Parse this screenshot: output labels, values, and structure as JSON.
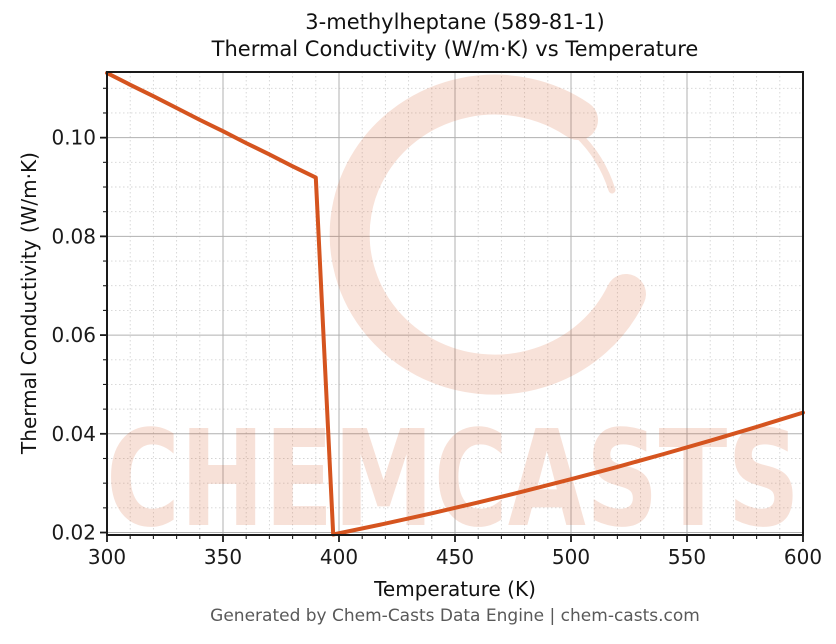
{
  "chart_data": {
    "type": "line",
    "title": "3-methylheptane (589-81-1)",
    "subtitle": "Thermal Conductivity (W/m·K) vs Temperature",
    "xlabel": "Temperature (K)",
    "ylabel": "Thermal Conductivity (W/m·K)",
    "xlim": [
      300,
      600
    ],
    "ylim": [
      0.0195,
      0.1133
    ],
    "xticks": [
      300,
      350,
      400,
      450,
      500,
      550,
      600
    ],
    "yticks": [
      0.02,
      0.04,
      0.06,
      0.08,
      0.1
    ],
    "x_minor_step": 10,
    "y_minor_step": 0.005,
    "grid": true,
    "legend": "none",
    "series": [
      {
        "name": "thermal-conductivity",
        "color": "#d5541f",
        "points": [
          [
            300,
            0.1131
          ],
          [
            310,
            0.1107
          ],
          [
            320,
            0.1084
          ],
          [
            330,
            0.106
          ],
          [
            340,
            0.1036
          ],
          [
            350,
            0.1013
          ],
          [
            360,
            0.0989
          ],
          [
            370,
            0.0966
          ],
          [
            380,
            0.0942
          ],
          [
            390,
            0.0919
          ],
          [
            397.5,
            0.0196
          ],
          [
            420,
            0.0218
          ],
          [
            440,
            0.0239
          ],
          [
            460,
            0.0261
          ],
          [
            480,
            0.0284
          ],
          [
            500,
            0.0308
          ],
          [
            520,
            0.0333
          ],
          [
            540,
            0.0359
          ],
          [
            560,
            0.0386
          ],
          [
            580,
            0.0414
          ],
          [
            600,
            0.0443
          ]
        ]
      }
    ]
  },
  "watermark": {
    "text": "CHEMCASTS",
    "icon": "c-swirl-logo",
    "color": "#d5541f",
    "opacity": 0.17
  },
  "footer": {
    "text": "Generated by Chem-Casts Data Engine | chem-casts.com"
  },
  "colors": {
    "line": "#d5541f",
    "spine": "#1a1a1a",
    "grid_major": "#b0b0b0",
    "grid_minor": "#d4d4d4",
    "tick": "#1a1a1a",
    "tick_label": "#1a1a1a",
    "footer_text": "#595959"
  }
}
